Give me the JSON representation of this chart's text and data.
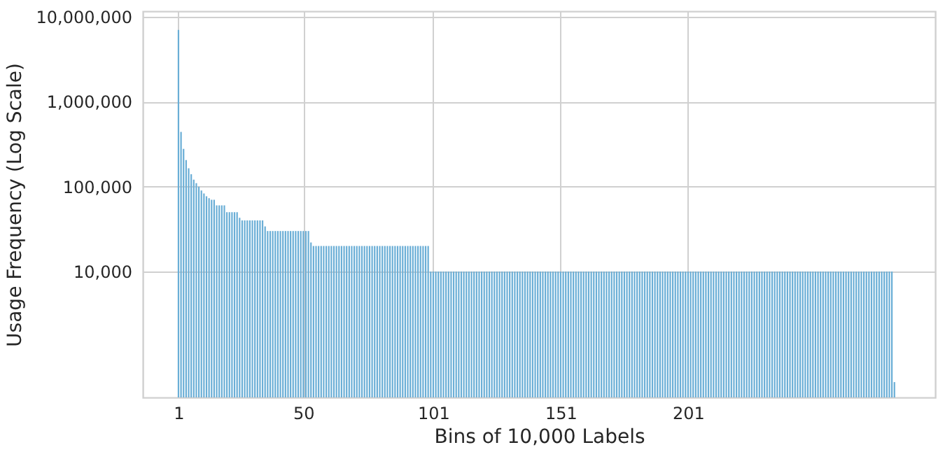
{
  "chart_data": {
    "type": "bar",
    "xlabel": "Bins of 10,000 Labels",
    "ylabel": "Usage Frequency (Log Scale)",
    "color": "#6aaed6",
    "log": "y",
    "grid": true,
    "xlim": [
      -13,
      298
    ],
    "xticks": [
      1,
      50,
      101,
      151,
      201
    ],
    "ylim": [
      330,
      11600000
    ],
    "yticks": [
      {
        "value": 10000,
        "label": "10,000"
      },
      {
        "value": 100000,
        "label": "100,000"
      },
      {
        "value": 1000000,
        "label": "1,000,000"
      },
      {
        "value": 10000000,
        "label": "10,000,000"
      }
    ],
    "x": [
      1,
      2,
      3,
      4,
      5,
      6,
      7,
      8,
      9,
      10,
      11,
      12,
      13,
      14,
      15,
      16,
      17,
      18,
      19,
      20,
      21,
      22,
      23,
      24,
      25,
      26,
      27,
      28,
      29,
      30,
      31,
      32,
      33,
      34,
      35,
      36,
      37,
      38,
      39,
      40,
      41,
      42,
      43,
      44,
      45,
      46,
      47,
      48,
      49,
      50,
      51,
      52,
      53,
      54,
      55,
      56,
      57,
      58,
      59,
      60,
      61,
      62,
      63,
      64,
      65,
      66,
      67,
      68,
      69,
      70,
      71,
      72,
      73,
      74,
      75,
      76,
      77,
      78,
      79,
      80,
      81,
      82,
      83,
      84,
      85,
      86,
      87,
      88,
      89,
      90,
      91,
      92,
      93,
      94,
      95,
      96,
      97,
      98,
      99,
      100,
      101,
      102,
      103,
      104,
      105,
      106,
      107,
      108,
      109,
      110,
      111,
      112,
      113,
      114,
      115,
      116,
      117,
      118,
      119,
      120,
      121,
      122,
      123,
      124,
      125,
      126,
      127,
      128,
      129,
      130,
      131,
      132,
      133,
      134,
      135,
      136,
      137,
      138,
      139,
      140,
      141,
      142,
      143,
      144,
      145,
      146,
      147,
      148,
      149,
      150,
      151,
      152,
      153,
      154,
      155,
      156,
      157,
      158,
      159,
      160,
      161,
      162,
      163,
      164,
      165,
      166,
      167,
      168,
      169,
      170,
      171,
      172,
      173,
      174,
      175,
      176,
      177,
      178,
      179,
      180,
      181,
      182,
      183,
      184,
      185,
      186,
      187,
      188,
      189,
      190,
      191,
      192,
      193,
      194,
      195,
      196,
      197,
      198,
      199,
      200,
      201,
      202,
      203,
      204,
      205,
      206,
      207,
      208,
      209,
      210,
      211,
      212,
      213,
      214,
      215,
      216,
      217,
      218,
      219,
      220,
      221,
      222,
      223,
      224,
      225,
      226,
      227,
      228,
      229,
      230,
      231,
      232,
      233,
      234,
      235,
      236,
      237,
      238,
      239,
      240,
      241,
      242,
      243,
      244,
      245,
      246,
      247,
      248,
      249,
      250,
      251,
      252,
      253,
      254,
      255,
      256,
      257,
      258,
      259,
      260,
      261,
      262,
      263,
      264,
      265,
      266,
      267,
      268,
      269,
      270,
      271,
      272,
      273,
      274,
      275,
      276,
      277,
      278,
      279,
      280,
      281,
      282
    ],
    "values": [
      7000000,
      440000,
      278000,
      205000,
      164000,
      140000,
      121000,
      110000,
      100000,
      90000,
      83000,
      77000,
      73000,
      70000,
      70000,
      60000,
      60000,
      60000,
      60000,
      50000,
      50000,
      50000,
      50000,
      50000,
      43000,
      40000,
      40000,
      40000,
      40000,
      40000,
      40000,
      40000,
      40000,
      40000,
      34000,
      30000,
      30000,
      30000,
      30000,
      30000,
      30000,
      30000,
      30000,
      30000,
      30000,
      30000,
      30000,
      30000,
      30000,
      30000,
      30000,
      30000,
      22000,
      20000,
      20000,
      20000,
      20000,
      20000,
      20000,
      20000,
      20000,
      20000,
      20000,
      20000,
      20000,
      20000,
      20000,
      20000,
      20000,
      20000,
      20000,
      20000,
      20000,
      20000,
      20000,
      20000,
      20000,
      20000,
      20000,
      20000,
      20000,
      20000,
      20000,
      20000,
      20000,
      20000,
      20000,
      20000,
      20000,
      20000,
      20000,
      20000,
      20000,
      20000,
      20000,
      20000,
      20000,
      20000,
      20000,
      10000,
      10000,
      10000,
      10000,
      10000,
      10000,
      10000,
      10000,
      10000,
      10000,
      10000,
      10000,
      10000,
      10000,
      10000,
      10000,
      10000,
      10000,
      10000,
      10000,
      10000,
      10000,
      10000,
      10000,
      10000,
      10000,
      10000,
      10000,
      10000,
      10000,
      10000,
      10000,
      10000,
      10000,
      10000,
      10000,
      10000,
      10000,
      10000,
      10000,
      10000,
      10000,
      10000,
      10000,
      10000,
      10000,
      10000,
      10000,
      10000,
      10000,
      10000,
      10000,
      10000,
      10000,
      10000,
      10000,
      10000,
      10000,
      10000,
      10000,
      10000,
      10000,
      10000,
      10000,
      10000,
      10000,
      10000,
      10000,
      10000,
      10000,
      10000,
      10000,
      10000,
      10000,
      10000,
      10000,
      10000,
      10000,
      10000,
      10000,
      10000,
      10000,
      10000,
      10000,
      10000,
      10000,
      10000,
      10000,
      10000,
      10000,
      10000,
      10000,
      10000,
      10000,
      10000,
      10000,
      10000,
      10000,
      10000,
      10000,
      10000,
      10000,
      10000,
      10000,
      10000,
      10000,
      10000,
      10000,
      10000,
      10000,
      10000,
      10000,
      10000,
      10000,
      10000,
      10000,
      10000,
      10000,
      10000,
      10000,
      10000,
      10000,
      10000,
      10000,
      10000,
      10000,
      10000,
      10000,
      10000,
      10000,
      10000,
      10000,
      10000,
      10000,
      10000,
      10000,
      10000,
      10000,
      10000,
      10000,
      10000,
      10000,
      10000,
      10000,
      10000,
      10000,
      10000,
      10000,
      10000,
      10000,
      10000,
      10000,
      10000,
      10000,
      10000,
      10000,
      10000,
      10000,
      10000,
      10000,
      10000,
      10000,
      10000,
      10000,
      10000,
      10000,
      10000,
      10000,
      10000,
      10000,
      10000,
      10000,
      10000,
      10000,
      10000,
      10000,
      10000,
      10000,
      10000,
      10000,
      10000,
      10000,
      500
    ]
  }
}
